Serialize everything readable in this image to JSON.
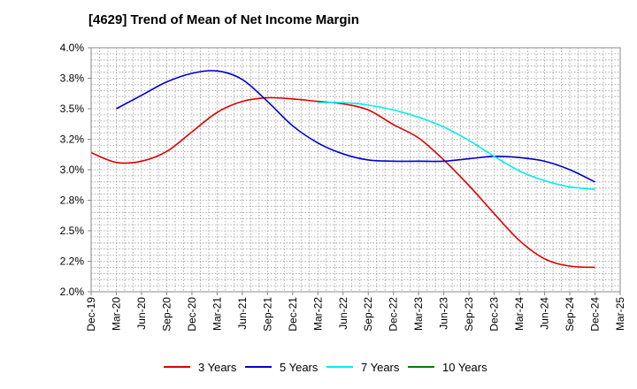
{
  "chart_data": {
    "type": "line",
    "title": "[4629]  Trend of Mean of Net Income Margin",
    "xlabel": "",
    "ylabel": "",
    "grid": true,
    "legend_position": "bottom",
    "x_ticks": [
      "Dec-19",
      "Mar-20",
      "Jun-20",
      "Sep-20",
      "Dec-20",
      "Mar-21",
      "Jun-21",
      "Sep-21",
      "Dec-21",
      "Mar-22",
      "Jun-22",
      "Sep-22",
      "Dec-22",
      "Mar-23",
      "Jun-23",
      "Sep-23",
      "Dec-23",
      "Mar-24",
      "Jun-24",
      "Sep-24",
      "Dec-24",
      "Mar-25"
    ],
    "y_ticks": [
      "2.0%",
      "2.2%",
      "2.5%",
      "2.8%",
      "3.0%",
      "3.2%",
      "3.5%",
      "3.8%",
      "4.0%"
    ],
    "ylim": [
      2.0,
      4.0
    ],
    "series": [
      {
        "name": "3 Years",
        "color": "#dd0000",
        "x": [
          "Dec-19",
          "Mar-20",
          "Jun-20",
          "Sep-20",
          "Dec-20",
          "Mar-21",
          "Jun-21",
          "Sep-21",
          "Dec-21",
          "Mar-22",
          "Jun-22",
          "Sep-22",
          "Dec-22",
          "Mar-23",
          "Jun-23",
          "Sep-23",
          "Dec-23",
          "Mar-24",
          "Jun-24",
          "Sep-24",
          "Dec-24"
        ],
        "values": [
          3.14,
          3.06,
          3.07,
          3.15,
          3.31,
          3.47,
          3.56,
          3.59,
          3.58,
          3.56,
          3.54,
          3.49,
          3.37,
          3.26,
          3.08,
          2.87,
          2.64,
          2.42,
          2.27,
          2.21,
          2.2
        ]
      },
      {
        "name": "5 Years",
        "color": "#0000cc",
        "x": [
          "Mar-20",
          "Jun-20",
          "Sep-20",
          "Dec-20",
          "Mar-21",
          "Jun-21",
          "Sep-21",
          "Dec-21",
          "Mar-22",
          "Jun-22",
          "Sep-22",
          "Dec-22",
          "Mar-23",
          "Jun-23",
          "Sep-23",
          "Dec-23",
          "Mar-24",
          "Jun-24",
          "Sep-24",
          "Dec-24"
        ],
        "values": [
          3.5,
          3.61,
          3.72,
          3.79,
          3.81,
          3.74,
          3.56,
          3.36,
          3.22,
          3.13,
          3.08,
          3.07,
          3.07,
          3.07,
          3.09,
          3.11,
          3.1,
          3.07,
          3.0,
          2.9
        ]
      },
      {
        "name": "7 Years",
        "color": "#00eeee",
        "x": [
          "Mar-22",
          "Jun-22",
          "Sep-22",
          "Dec-22",
          "Mar-23",
          "Jun-23",
          "Sep-23",
          "Dec-23",
          "Mar-24",
          "Jun-24",
          "Sep-24",
          "Dec-24"
        ],
        "values": [
          3.55,
          3.55,
          3.53,
          3.49,
          3.43,
          3.35,
          3.24,
          3.11,
          2.99,
          2.91,
          2.86,
          2.84
        ]
      },
      {
        "name": "10 Years",
        "color": "#008000",
        "x": [],
        "values": []
      }
    ]
  }
}
